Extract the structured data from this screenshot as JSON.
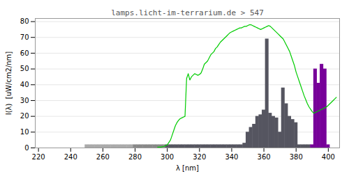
{
  "chart_data": {
    "type": "bar",
    "title": "lamps.licht-im-terrarium.de > 547",
    "xlabel": "λ [nm]",
    "ylabel": "I(λ)  [uW/cm2/nm]",
    "xlim": [
      218,
      407
    ],
    "ylim": [
      0,
      82
    ],
    "xticks": [
      220,
      240,
      260,
      280,
      300,
      320,
      340,
      360,
      380,
      400
    ],
    "yticks": [
      0,
      10,
      20,
      30,
      40,
      50,
      60,
      70,
      80
    ],
    "grid": true,
    "series": [
      {
        "type": "bar",
        "x": [
          250,
          252,
          254,
          256,
          258,
          260,
          262,
          264,
          266,
          268,
          270,
          272,
          274,
          276,
          278,
          280,
          282,
          284,
          286,
          288,
          290,
          292,
          294,
          296,
          298,
          300,
          302,
          304,
          306,
          308,
          310,
          312,
          314,
          316,
          318,
          320,
          322,
          324,
          326,
          328,
          330,
          332,
          334,
          336,
          338,
          340,
          342,
          344,
          346,
          348,
          350,
          352,
          354,
          356,
          358,
          360,
          362,
          364,
          366,
          368,
          370,
          372,
          374,
          376,
          378,
          380,
          382,
          384,
          386,
          388,
          390,
          392,
          394,
          396,
          398,
          400
        ],
        "values": [
          2.0,
          2.0,
          2.0,
          2.0,
          2.0,
          2.0,
          2.0,
          2.0,
          2.0,
          2.0,
          2.0,
          2.0,
          2.0,
          2.0,
          2.0,
          2.0,
          2.0,
          2.0,
          2.0,
          2.0,
          2.0,
          2.0,
          2.0,
          2.0,
          2.0,
          2.0,
          2.0,
          2.0,
          2.0,
          2.0,
          2.0,
          2.0,
          2.0,
          2.0,
          2.0,
          2.0,
          2.0,
          2.0,
          2.0,
          2.0,
          2.0,
          2.0,
          2.0,
          2.0,
          2.0,
          2.0,
          2.0,
          2.0,
          2.0,
          3.0,
          10.0,
          13.0,
          15.0,
          20.0,
          21.0,
          24.0,
          69.0,
          22.0,
          20.0,
          19.0,
          10.0,
          38.0,
          28.0,
          20.0,
          18.0,
          16.0,
          2.0,
          2.0,
          2.0,
          2.0,
          2.0,
          50.0,
          41.0,
          53.0,
          50.0,
          2.0
        ],
        "colors": [
          "#aaaaaa",
          "#aaaaaa",
          "#aaaaaa",
          "#aaaaaa",
          "#aaaaaa",
          "#aaaaaa",
          "#aaaaaa",
          "#aaaaaa",
          "#aaaaaa",
          "#aaaaaa",
          "#aaaaaa",
          "#aaaaaa",
          "#aaaaaa",
          "#aaaaaa",
          "#aaaaaa",
          "#888888",
          "#888888",
          "#888888",
          "#888888",
          "#888888",
          "#888888",
          "#888888",
          "#888888",
          "#888888",
          "#888888",
          "#555560",
          "#555560",
          "#555560",
          "#555560",
          "#555560",
          "#555560",
          "#555560",
          "#555560",
          "#555560",
          "#555560",
          "#555560",
          "#555560",
          "#555560",
          "#555560",
          "#555560",
          "#555560",
          "#555560",
          "#555560",
          "#555560",
          "#555560",
          "#555560",
          "#555560",
          "#555560",
          "#555560",
          "#555560",
          "#555560",
          "#555560",
          "#555560",
          "#555560",
          "#555560",
          "#555560",
          "#555560",
          "#555560",
          "#555560",
          "#555560",
          "#555560",
          "#555560",
          "#555560",
          "#555560",
          "#555560",
          "#555560",
          "#555560",
          "#555560",
          "#555560",
          "#555560",
          "#770099",
          "#770099",
          "#770099",
          "#770099",
          "#770099",
          "#770099"
        ]
      },
      {
        "type": "line",
        "color": "#00cc00",
        "x": [
          294,
          296,
          298,
          300,
          301,
          302,
          303,
          304,
          305,
          306,
          307,
          308,
          309,
          310,
          311,
          312,
          313,
          314,
          315,
          316,
          317,
          318,
          319,
          320,
          321,
          322,
          323,
          324,
          325,
          326,
          327,
          328,
          329,
          330,
          331,
          332,
          333,
          334,
          335,
          336,
          337,
          338,
          339,
          340,
          341,
          342,
          343,
          344,
          345,
          346,
          347,
          348,
          349,
          350,
          351,
          352,
          353,
          354,
          355,
          356,
          357,
          358,
          359,
          360,
          361,
          362,
          363,
          364,
          365,
          366,
          367,
          368,
          369,
          370,
          371,
          372,
          373,
          374,
          375,
          376,
          377,
          378,
          379,
          380,
          381,
          382,
          383,
          384,
          385,
          386,
          387,
          388,
          389,
          390,
          391,
          392,
          393,
          394,
          395,
          396,
          397,
          398,
          399,
          400,
          401,
          402,
          403,
          404,
          405
        ],
        "values": [
          0.5,
          0.5,
          1.0,
          2.0,
          3.5,
          5.0,
          8.0,
          11.0,
          14.0,
          16.0,
          17.5,
          18.5,
          19.0,
          19.5,
          20.0,
          44.0,
          47.0,
          43.0,
          45.0,
          46.0,
          47.0,
          46.5,
          46.0,
          46.5,
          47.5,
          50.0,
          53.0,
          54.0,
          55.0,
          57.0,
          59.0,
          60.0,
          61.0,
          63.0,
          64.0,
          65.5,
          67.0,
          68.0,
          69.0,
          70.0,
          71.0,
          72.0,
          73.0,
          73.5,
          74.0,
          74.5,
          75.0,
          75.5,
          76.0,
          76.0,
          76.5,
          77.0,
          77.0,
          77.5,
          78.0,
          78.0,
          77.5,
          77.0,
          76.5,
          76.0,
          75.5,
          75.0,
          75.5,
          76.0,
          76.5,
          77.0,
          77.5,
          77.0,
          76.0,
          75.0,
          74.0,
          73.0,
          72.0,
          71.0,
          70.0,
          69.0,
          67.0,
          65.0,
          63.0,
          61.0,
          58.0,
          55.0,
          52.0,
          48.0,
          45.0,
          42.0,
          39.0,
          36.0,
          33.0,
          30.5,
          28.0,
          26.0,
          24.5,
          23.0,
          22.0,
          22.5,
          23.0,
          23.5,
          24.0,
          24.5,
          25.0,
          25.5,
          26.0,
          27.0,
          28.0,
          29.0,
          30.0,
          31.0,
          32.0
        ]
      }
    ]
  }
}
